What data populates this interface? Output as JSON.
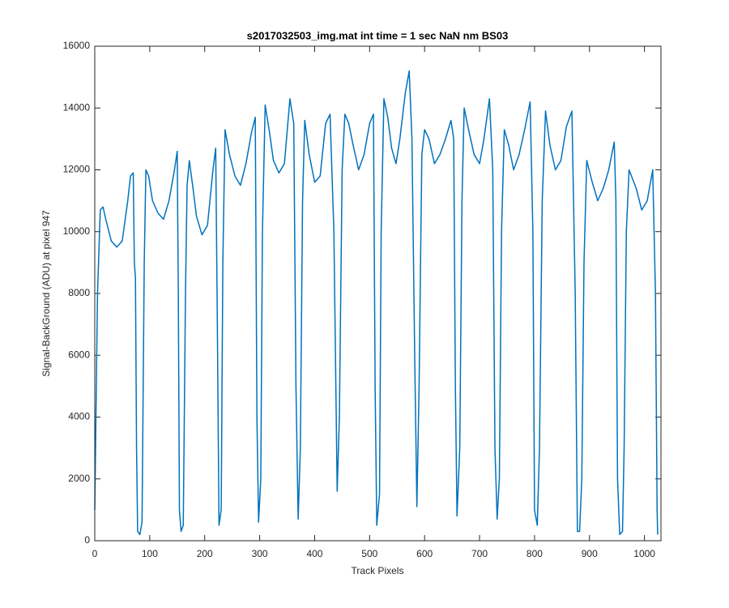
{
  "chart_data": {
    "type": "line",
    "title": "s2017032503_img.mat int time = 1 sec  NaN nm BS03",
    "x_label": "Track Pixels",
    "y_label": "Signal-BackGround (ADU) at pixel 947",
    "xlim": [
      0,
      1030
    ],
    "ylim": [
      0,
      16000
    ],
    "xticks": [
      0,
      100,
      200,
      300,
      400,
      500,
      600,
      700,
      800,
      900,
      1000
    ],
    "yticks": [
      0,
      2000,
      4000,
      6000,
      8000,
      10000,
      12000,
      14000,
      16000
    ],
    "grid": false,
    "x": [
      0,
      5,
      10,
      15,
      20,
      30,
      40,
      50,
      60,
      65,
      70,
      72,
      74,
      76,
      78,
      82,
      86,
      90,
      93,
      98,
      105,
      115,
      125,
      135,
      145,
      150,
      152,
      154,
      157,
      161,
      165,
      168,
      172,
      178,
      185,
      195,
      205,
      215,
      220,
      223,
      226,
      230,
      233,
      237,
      245,
      255,
      265,
      275,
      285,
      292,
      295,
      298,
      302,
      305,
      310,
      318,
      325,
      335,
      345,
      355,
      362,
      366,
      370,
      374,
      378,
      382,
      390,
      400,
      410,
      420,
      428,
      435,
      441,
      445,
      450,
      455,
      462,
      470,
      480,
      490,
      500,
      507,
      510,
      513,
      518,
      521,
      526,
      533,
      540,
      548,
      555,
      565,
      572,
      577,
      582,
      586,
      590,
      595,
      600,
      608,
      618,
      628,
      638,
      648,
      653,
      656,
      659,
      664,
      668,
      672,
      680,
      690,
      700,
      708,
      718,
      724,
      728,
      732,
      736,
      740,
      745,
      753,
      762,
      772,
      782,
      792,
      797,
      800,
      805,
      809,
      814,
      820,
      828,
      838,
      848,
      858,
      868,
      874,
      878,
      882,
      886,
      890,
      895,
      905,
      915,
      925,
      935,
      945,
      948,
      951,
      955,
      960,
      963,
      967,
      972,
      985,
      995,
      1005,
      1015,
      1020,
      1023,
      1024
    ],
    "series": [
      {
        "name": "signal",
        "color": "#0072bd",
        "values": [
          1000,
          8000,
          10700,
          10800,
          10400,
          9700,
          9500,
          9700,
          11000,
          11800,
          11900,
          9000,
          8500,
          3000,
          300,
          200,
          600,
          9000,
          12000,
          11800,
          11000,
          10600,
          10400,
          11000,
          12000,
          12600,
          8000,
          1000,
          300,
          500,
          8000,
          11500,
          12300,
          11500,
          10500,
          9900,
          10200,
          12000,
          12700,
          7000,
          500,
          1000,
          9000,
          13300,
          12500,
          11800,
          11500,
          12200,
          13200,
          13700,
          4000,
          600,
          2000,
          10000,
          14100,
          13200,
          12300,
          11900,
          12200,
          14300,
          13500,
          5000,
          700,
          3000,
          11000,
          13600,
          12500,
          11600,
          11800,
          13500,
          13800,
          10000,
          1600,
          4000,
          12000,
          13800,
          13500,
          12800,
          12000,
          12500,
          13500,
          13800,
          5000,
          500,
          1500,
          10000,
          14300,
          13700,
          12700,
          12200,
          13000,
          14500,
          15200,
          13000,
          6000,
          1100,
          5000,
          12500,
          13300,
          13000,
          12200,
          12500,
          13000,
          13600,
          13000,
          5000,
          800,
          3000,
          11000,
          14000,
          13300,
          12500,
          12200,
          13000,
          14300,
          12000,
          3000,
          700,
          2000,
          10000,
          13300,
          12800,
          12000,
          12500,
          13300,
          14200,
          10000,
          1000,
          500,
          3000,
          11000,
          13900,
          12800,
          12000,
          12300,
          13400,
          13900,
          8000,
          300,
          300,
          2000,
          9000,
          12300,
          11600,
          11000,
          11400,
          12000,
          12900,
          11000,
          2000,
          200,
          300,
          3000,
          10000,
          12000,
          11400,
          10700,
          11000,
          12000,
          8000,
          1000,
          200
        ]
      }
    ]
  }
}
